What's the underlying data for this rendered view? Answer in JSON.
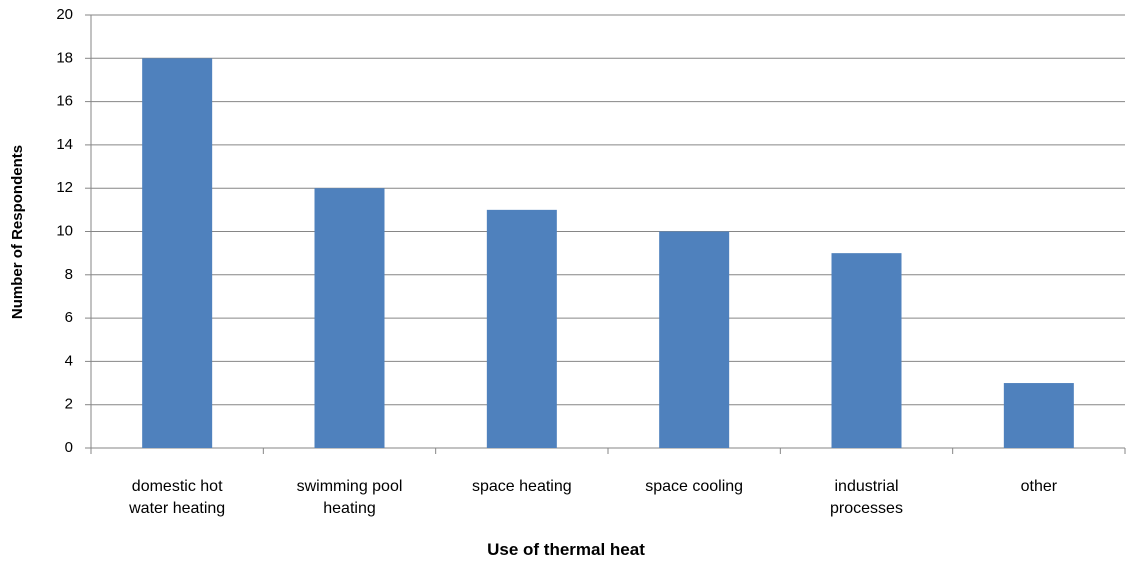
{
  "chart_data": {
    "type": "bar",
    "x_label": "Use of thermal heat",
    "y_label": "Number of Respondents",
    "categories": [
      "domestic hot water heating",
      "swimming pool heating",
      "space heating",
      "space cooling",
      "industrial processes",
      "other"
    ],
    "values": [
      18,
      12,
      11,
      10,
      9,
      3
    ],
    "color": "#4f81bd",
    "ylim": [
      0,
      20
    ],
    "yticks": [
      0,
      2,
      4,
      6,
      8,
      10,
      12,
      14,
      16,
      18,
      20
    ],
    "grid": true
  }
}
